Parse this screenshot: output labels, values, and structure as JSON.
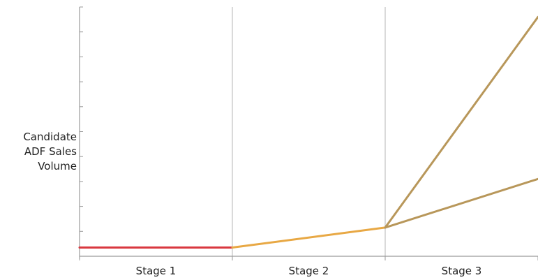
{
  "chart_data": {
    "type": "line",
    "title": "",
    "ylabel_lines": [
      "Candidate",
      "ADF Sales",
      "Volume"
    ],
    "xlabel": "",
    "categories": [
      "Stage 1",
      "Stage 2",
      "Stage 3"
    ],
    "xlim": [
      0,
      3
    ],
    "ylim": [
      0,
      10
    ],
    "yticks": [
      0,
      1,
      2,
      3,
      4,
      5,
      6,
      7,
      8,
      9,
      10
    ],
    "grid": "vertical lines at stage boundaries",
    "legend": "none",
    "series": [
      {
        "values": [
          [
            0,
            0.35
          ],
          [
            1,
            0.35
          ]
        ],
        "color": "#d9383f"
      },
      {
        "values": [
          [
            1,
            0.35
          ],
          [
            2,
            1.15
          ]
        ],
        "color": "#e8a844"
      },
      {
        "values": [
          [
            2,
            1.15
          ],
          [
            3,
            9.6
          ]
        ],
        "color": "#b8975a"
      },
      {
        "values": [
          [
            2,
            1.15
          ],
          [
            3,
            3.1
          ]
        ],
        "color": "#b8975a"
      }
    ],
    "axis_color": "#9a9a9a"
  }
}
